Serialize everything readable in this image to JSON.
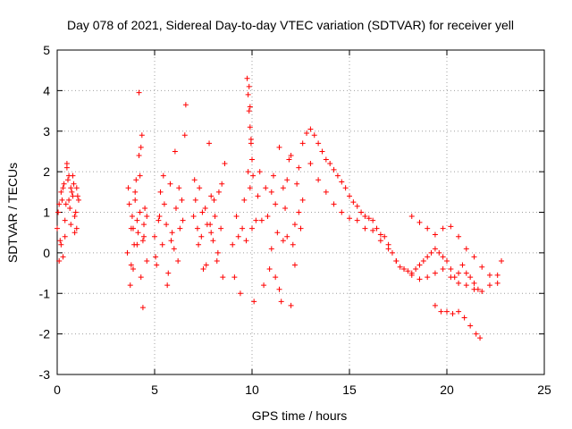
{
  "chart_data": {
    "type": "scatter",
    "title": "Day 078 of 2021, Sidereal Day-to-day VTEC variation (SDTVAR) for receiver yell",
    "xlabel": "GPS time / hours",
    "ylabel": "SDTVAR / TECUs",
    "xlim": [
      0,
      25
    ],
    "ylim": [
      -3,
      5
    ],
    "xticks": [
      0,
      5,
      10,
      15,
      20,
      25
    ],
    "yticks": [
      -3,
      -2,
      -1,
      0,
      1,
      2,
      3,
      4,
      5
    ],
    "grid": true,
    "marker": "+",
    "color": "#ff0000",
    "series": [
      {
        "name": "SDTVAR",
        "x": [
          0.0,
          0.1,
          0.2,
          0.3,
          0.4,
          0.5,
          0.6,
          0.7,
          0.8,
          0.9,
          1.0,
          1.1,
          0.05,
          0.15,
          0.25,
          0.35,
          0.45,
          0.55,
          0.65,
          0.75,
          0.85,
          0.95,
          1.05,
          0.1,
          0.2,
          0.3,
          0.4,
          0.5,
          0.6,
          0.7,
          0.8,
          0.9,
          1.0,
          3.6,
          3.7,
          3.8,
          3.9,
          4.0,
          4.1,
          4.2,
          4.3,
          4.4,
          4.5,
          4.6,
          3.65,
          3.75,
          3.85,
          3.95,
          4.05,
          4.15,
          4.25,
          4.35,
          4.45,
          3.8,
          3.9,
          4.0,
          4.1,
          4.2,
          4.3,
          4.4,
          4.25,
          4.45,
          4.6,
          5.0,
          5.1,
          5.2,
          5.3,
          5.4,
          5.5,
          5.6,
          5.7,
          5.8,
          5.9,
          6.0,
          6.1,
          6.2,
          6.3,
          6.4,
          5.05,
          5.25,
          5.45,
          5.65,
          5.85,
          6.05,
          6.25,
          6.45,
          6.6,
          6.55,
          7.0,
          7.1,
          7.2,
          7.3,
          7.4,
          7.5,
          7.6,
          7.7,
          7.8,
          7.9,
          8.0,
          8.1,
          8.2,
          8.3,
          8.4,
          8.5,
          7.05,
          7.25,
          7.45,
          7.65,
          7.85,
          8.05,
          8.25,
          8.45,
          7.9,
          8.6,
          9.0,
          9.1,
          9.2,
          9.3,
          9.4,
          9.5,
          9.6,
          9.7,
          9.8,
          9.9,
          10.0,
          10.1,
          10.2,
          9.75,
          9.8,
          9.85,
          9.9,
          9.95,
          10.0,
          9.85,
          9.9,
          9.95,
          10.05,
          10.3,
          10.5,
          10.7,
          10.9,
          11.1,
          11.3,
          11.5,
          11.7,
          11.9,
          12.1,
          12.3,
          12.5,
          10.4,
          10.6,
          10.8,
          11.0,
          11.2,
          11.4,
          11.6,
          11.8,
          12.0,
          12.2,
          12.4,
          12.6,
          11.0,
          11.2,
          11.4,
          11.6,
          11.8,
          12.0,
          12.2,
          12.4,
          12.6,
          12.8,
          13.0,
          13.2,
          13.4,
          13.6,
          13.8,
          14.0,
          14.2,
          14.4,
          14.6,
          14.8,
          15.0,
          15.2,
          15.4,
          15.6,
          15.8,
          16.0,
          16.2,
          16.4,
          16.6,
          16.8,
          17.0,
          17.2,
          17.4,
          17.6,
          17.8,
          18.0,
          18.2,
          18.4,
          18.6,
          18.8,
          19.0,
          19.2,
          19.4,
          19.6,
          19.8,
          20.0,
          20.2,
          20.4,
          20.6,
          20.8,
          21.0,
          21.2,
          21.4,
          21.6,
          13.0,
          13.4,
          13.8,
          14.2,
          14.6,
          15.0,
          15.4,
          15.8,
          16.2,
          16.6,
          17.0,
          17.4,
          17.8,
          18.2,
          18.6,
          19.0,
          19.4,
          19.8,
          20.2,
          20.6,
          21.0,
          21.4,
          21.8,
          22.2,
          22.6,
          18.2,
          18.6,
          19.0,
          19.4,
          19.8,
          20.2,
          20.6,
          21.0,
          21.4,
          21.8,
          22.2,
          22.6,
          22.8
        ],
        "y": [
          0.6,
          1.2,
          1.5,
          -0.1,
          0.8,
          2.1,
          1.9,
          1.6,
          1.4,
          0.9,
          0.6,
          1.3,
          1.0,
          0.3,
          1.3,
          1.7,
          1.2,
          1.8,
          1.1,
          1.5,
          1.7,
          1.0,
          1.4,
          -0.2,
          0.2,
          1.6,
          0.4,
          2.2,
          1.3,
          0.7,
          1.9,
          0.5,
          1.6,
          0.0,
          1.2,
          0.6,
          -0.4,
          1.5,
          0.8,
          2.4,
          -0.6,
          0.3,
          1.1,
          -0.2,
          1.6,
          -0.8,
          0.9,
          0.2,
          1.8,
          0.5,
          1.0,
          2.9,
          0.7,
          -0.3,
          0.6,
          1.3,
          0.2,
          3.95,
          2.6,
          -1.35,
          1.9,
          0.4,
          0.9,
          0.4,
          -0.3,
          0.8,
          1.5,
          0.2,
          1.2,
          0.7,
          -0.5,
          1.7,
          0.5,
          0.1,
          1.1,
          -0.2,
          0.6,
          1.3,
          -0.1,
          0.9,
          1.9,
          -0.8,
          0.3,
          2.5,
          1.6,
          0.8,
          3.65,
          2.9,
          0.9,
          1.3,
          0.6,
          1.6,
          0.4,
          -0.4,
          1.1,
          0.7,
          2.7,
          1.4,
          0.3,
          0.9,
          -0.2,
          1.5,
          0.6,
          -0.6,
          1.8,
          0.2,
          1.0,
          -0.3,
          0.7,
          1.3,
          0.0,
          1.7,
          0.5,
          2.2,
          0.2,
          -0.6,
          0.9,
          0.4,
          -1.0,
          0.6,
          1.3,
          0.3,
          2.0,
          1.6,
          0.6,
          -1.2,
          0.8,
          4.3,
          3.9,
          3.5,
          3.1,
          2.7,
          2.3,
          4.1,
          3.6,
          2.8,
          1.9,
          1.4,
          0.8,
          1.6,
          -0.4,
          1.9,
          0.5,
          -1.2,
          1.1,
          2.3,
          0.2,
          1.7,
          0.6,
          2.0,
          -0.8,
          0.9,
          1.5,
          -0.6,
          2.6,
          0.3,
          1.8,
          -1.3,
          0.7,
          2.1,
          1.3,
          0.1,
          1.2,
          -0.9,
          1.6,
          0.4,
          2.4,
          -0.3,
          1.0,
          2.7,
          2.95,
          3.05,
          2.9,
          2.7,
          2.5,
          2.3,
          2.2,
          2.05,
          1.9,
          1.75,
          1.6,
          1.4,
          1.25,
          1.15,
          1.0,
          0.9,
          0.85,
          0.8,
          0.6,
          0.45,
          0.4,
          0.2,
          0.0,
          -0.2,
          -0.35,
          -0.4,
          -0.45,
          -0.5,
          -0.4,
          -0.3,
          -0.2,
          -0.1,
          0.0,
          0.1,
          0.0,
          -0.1,
          -0.2,
          -0.4,
          -0.6,
          -0.5,
          -0.3,
          -0.5,
          -0.6,
          -0.75,
          -0.9,
          2.2,
          1.8,
          1.5,
          1.2,
          1.0,
          0.85,
          0.8,
          0.6,
          0.55,
          0.3,
          0.1,
          -0.2,
          -0.4,
          -0.55,
          -0.65,
          -0.6,
          -0.5,
          -0.4,
          -0.6,
          -0.75,
          -0.8,
          -0.9,
          -0.95,
          -0.8,
          -0.55,
          0.9,
          0.75,
          0.6,
          0.45,
          0.6,
          0.65,
          0.4,
          0.1,
          -0.1,
          -0.35,
          -0.55,
          -0.75,
          -0.2
        ],
        "extra_tail": {
          "x": [
            19.4,
            19.7,
            20.0,
            20.3,
            20.6,
            20.9,
            21.2,
            21.5,
            21.7
          ],
          "y": [
            -1.3,
            -1.45,
            -1.45,
            -1.5,
            -1.45,
            -1.6,
            -1.8,
            -2.0,
            -2.1
          ]
        }
      }
    ]
  }
}
